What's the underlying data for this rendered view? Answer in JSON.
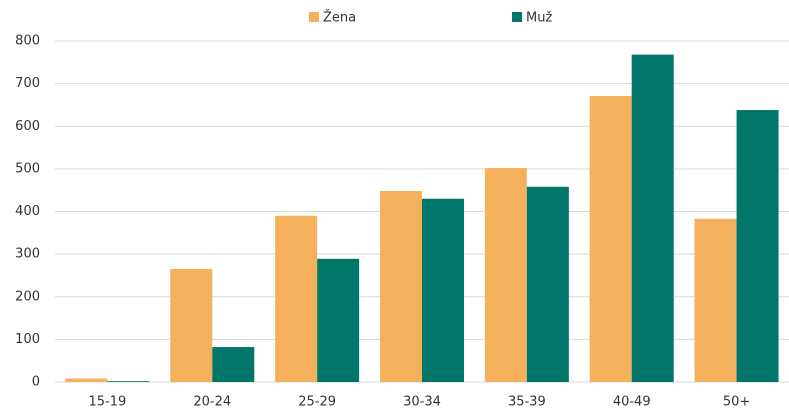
{
  "chart_data": {
    "type": "bar",
    "categories": [
      "15-19",
      "20-24",
      "25-29",
      "30-34",
      "35-39",
      "40-49",
      "50+"
    ],
    "series": [
      {
        "name": "Žena",
        "color": "#f5b05b",
        "values": [
          8,
          265,
          390,
          448,
          502,
          671,
          383
        ]
      },
      {
        "name": "Muž",
        "color": "#00776a",
        "values": [
          2,
          82,
          289,
          430,
          458,
          768,
          638
        ]
      }
    ],
    "ylim": [
      0,
      800
    ],
    "yticks": [
      0,
      100,
      200,
      300,
      400,
      500,
      600,
      700,
      800
    ],
    "grid": true,
    "legend": "top"
  }
}
